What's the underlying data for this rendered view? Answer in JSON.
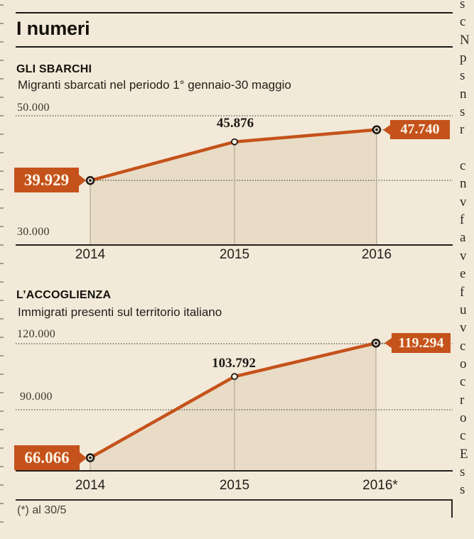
{
  "page": {
    "title": "I numeri",
    "footnote": "(*) al 30/5"
  },
  "colors": {
    "background": "#f2e9d8",
    "accent": "#c5521b",
    "area_fill": "#e8dcc7",
    "ink": "#1d1a16"
  },
  "chart_data": [
    {
      "type": "line",
      "title": "GLI SBARCHI",
      "subtitle": "Migranti sbarcati nel periodo 1° gennaio-30 maggio",
      "categories": [
        "2014",
        "2015",
        "2016"
      ],
      "values": [
        39929,
        45876,
        47740
      ],
      "value_labels": [
        "39.929",
        "45.876",
        "47.740"
      ],
      "ylim": [
        30000,
        50000
      ],
      "yticks": [
        {
          "value": 50000,
          "label": "50.000"
        },
        {
          "value": 30000,
          "label": "30.000"
        }
      ],
      "grid": "dotted-horizontal",
      "area": true,
      "legend": "none"
    },
    {
      "type": "line",
      "title": "L’ACCOGLIENZA",
      "subtitle": "Immigrati presenti sul territorio italiano",
      "categories": [
        "2014",
        "2015",
        "2016*"
      ],
      "values": [
        66066,
        103792,
        119294
      ],
      "value_labels": [
        "66.066",
        "103.792",
        "119.294"
      ],
      "ylim": [
        60000,
        120000
      ],
      "yticks": [
        {
          "value": 120000,
          "label": "120.000"
        },
        {
          "value": 90000,
          "label": "90.000"
        }
      ],
      "grid": "dotted-horizontal",
      "area": true,
      "legend": "none",
      "footnote": "(*) al 30/5"
    }
  ],
  "right_column_fragments": [
    "s",
    "c",
    "N",
    "p",
    "s",
    "n",
    "s",
    "r",
    "",
    "c",
    "n",
    "v",
    "f",
    "a",
    "v",
    "e",
    "f",
    "u",
    "v",
    "c",
    "o",
    "c",
    "r",
    "o",
    "c",
    "E",
    "s",
    "s"
  ]
}
